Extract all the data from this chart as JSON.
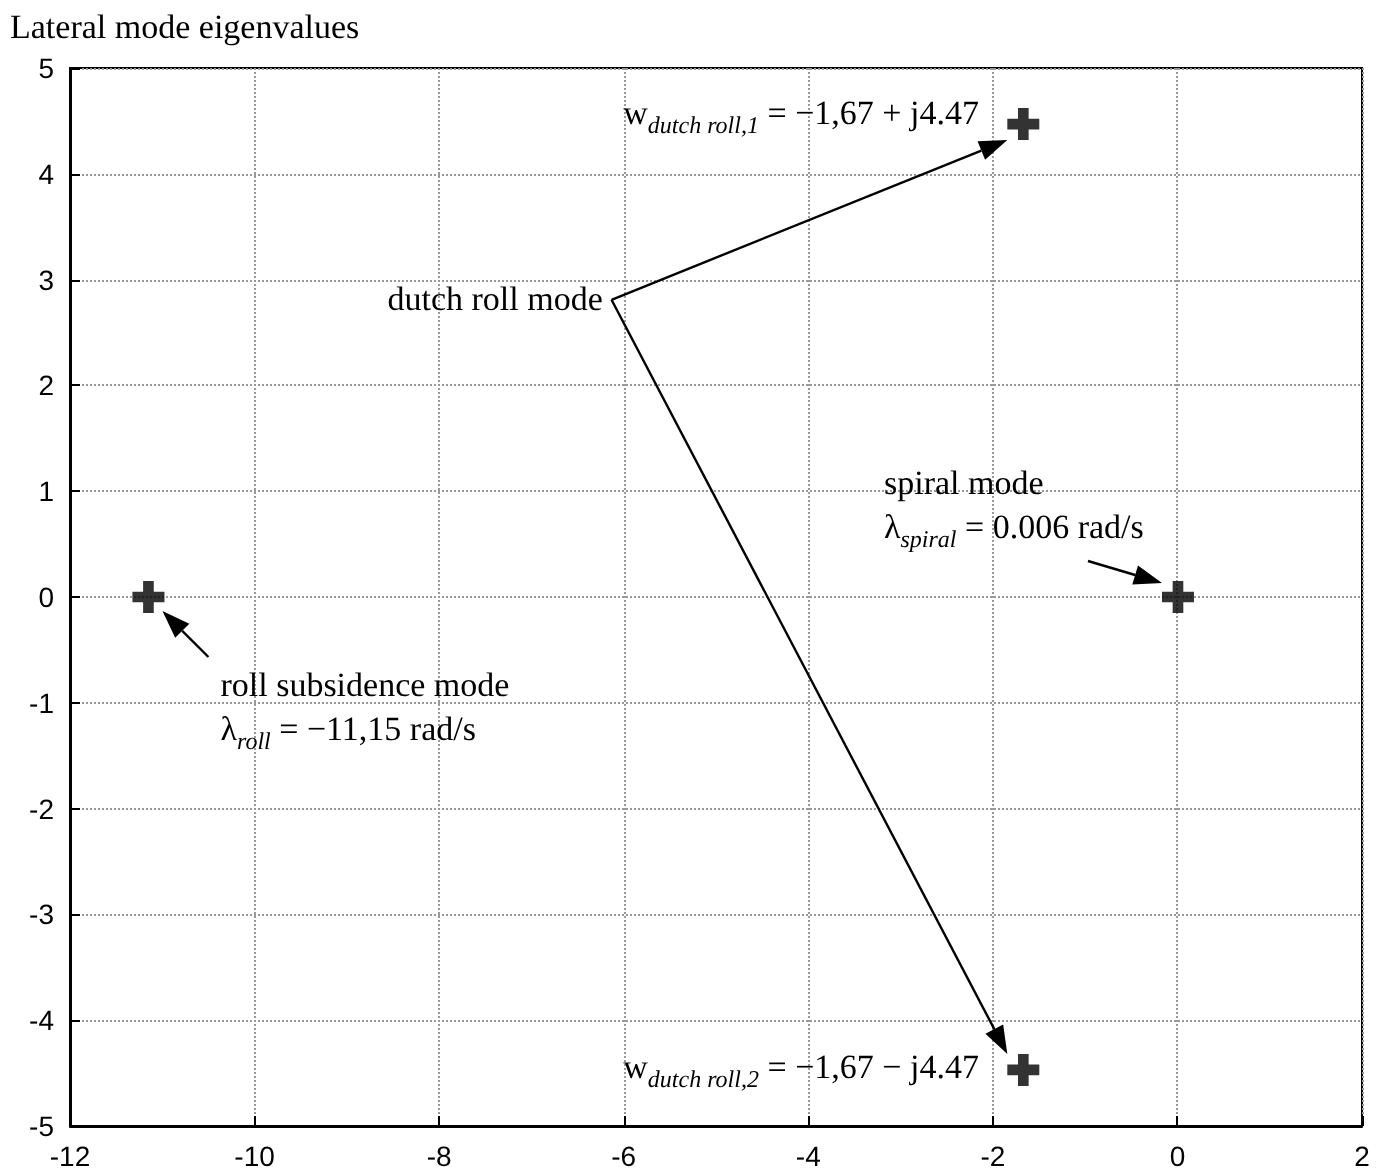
{
  "chart_data": {
    "type": "scatter",
    "title": "Lateral mode eigenvalues",
    "x": [
      -1.67,
      -1.67,
      0.006,
      -11.15
    ],
    "series": [
      {
        "color": "#000000",
        "values": [
          4.47,
          -4.47,
          0,
          0
        ]
      }
    ],
    "xlim": [
      -12,
      2
    ],
    "xticks": [
      -12,
      -10,
      -8,
      -6,
      -4,
      -2,
      0,
      2
    ],
    "ylim": [
      -5,
      5
    ],
    "yticks": [
      -5,
      -4,
      -3,
      -2,
      -1,
      0,
      1,
      2,
      3,
      4,
      5
    ],
    "grid": true,
    "marker": "cross",
    "annotations": [
      {
        "text": "w$_{dutch roll,1}$ = −1,67 + j4.47",
        "x": -1.67,
        "y": 4.47
      },
      {
        "text": "w$_{dutch roll,2}$ = −1,67 − j4.47",
        "x": -1.67,
        "y": -4.47
      },
      "dutch roll mode",
      {
        "text": "spiral mode\nλ$_{spiral}$ = 0.006 rad/s",
        "x": 0.006,
        "y": 0
      },
      {
        "text": "roll subsidence mode\nλ$_{roll}$ = −11,15 rad/s",
        "x": -11.15,
        "y": 0
      }
    ]
  }
}
